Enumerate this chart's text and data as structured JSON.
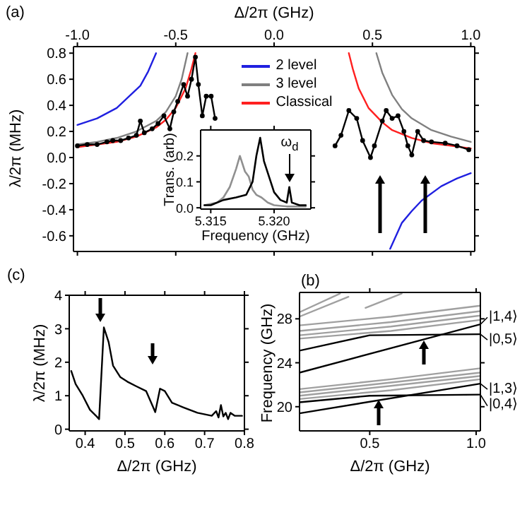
{
  "chart_data": [
    {
      "type": "line",
      "title": "(a)",
      "xlabel": "Δ/2π (GHz)",
      "ylabel": "λ/2π (MHz)",
      "xlim": [
        -1.02,
        1.02
      ],
      "xticks": [
        {
          "value": -1,
          "label": "-1.0"
        },
        {
          "value": -0.5,
          "label": "-0.5"
        },
        {
          "value": 0,
          "label": "0.0"
        },
        {
          "value": 0.5,
          "label": "0.5"
        },
        {
          "value": 1,
          "label": "1.0"
        }
      ],
      "ylim": [
        -0.72,
        0.85
      ],
      "yticks": [
        {
          "value": -0.6,
          "label": "-0.6"
        },
        {
          "value": -0.4,
          "label": "-0.4"
        },
        {
          "value": -0.2,
          "label": "-0.2"
        },
        {
          "value": 0,
          "label": "0.0"
        },
        {
          "value": 0.2,
          "label": "0.2"
        },
        {
          "value": 0.4,
          "label": "0.4"
        },
        {
          "value": 0.6,
          "label": "0.6"
        },
        {
          "value": 0.8,
          "label": "0.8"
        }
      ],
      "legend": "top",
      "series": [
        {
          "name": "2 level",
          "color": "#2020e0",
          "x": [
            -1.0,
            -0.9,
            -0.8,
            -0.68,
            -0.64,
            -0.6,
            0,
            0.59,
            0.65,
            0.7,
            0.75,
            0.85,
            0.93,
            1.0
          ],
          "values": [
            0.25,
            0.3,
            0.38,
            0.55,
            0.66,
            0.8,
            null,
            -0.7,
            -0.5,
            -0.41,
            -0.33,
            -0.22,
            -0.16,
            -0.12
          ]
        },
        {
          "name": "3 level",
          "color": "#808080",
          "x": [
            -1.0,
            -0.9,
            -0.8,
            -0.7,
            -0.6,
            -0.55,
            -0.5,
            -0.47,
            -0.44,
            0,
            0.52,
            0.55,
            0.6,
            0.65,
            0.7,
            0.8,
            0.9,
            1.0
          ],
          "values": [
            0.1,
            0.12,
            0.15,
            0.2,
            0.28,
            0.35,
            0.47,
            0.6,
            0.8,
            null,
            0.8,
            0.65,
            0.48,
            0.37,
            0.3,
            0.21,
            0.16,
            0.12
          ]
        },
        {
          "name": "Classical",
          "color": "#ff2020",
          "x": [
            -1.0,
            -0.9,
            -0.8,
            -0.7,
            -0.6,
            -0.55,
            -0.5,
            -0.45,
            -0.42,
            -0.4,
            0,
            0.38,
            0.4,
            0.43,
            0.48,
            0.55,
            0.6,
            0.7,
            0.8,
            0.9,
            1.0
          ],
          "values": [
            0.08,
            0.1,
            0.12,
            0.16,
            0.23,
            0.29,
            0.38,
            0.53,
            0.68,
            0.8,
            null,
            0.8,
            0.68,
            0.53,
            0.38,
            0.27,
            0.21,
            0.15,
            0.11,
            0.09,
            0.07
          ]
        },
        {
          "color": "#000000",
          "marker": "circle",
          "x": [
            -1.0,
            -0.95,
            -0.9,
            -0.85,
            -0.82,
            -0.78,
            -0.74,
            -0.7,
            -0.68,
            -0.66,
            -0.62,
            -0.59,
            -0.56,
            -0.53,
            -0.51,
            -0.49,
            -0.46,
            -0.44,
            -0.42,
            -0.4,
            -0.385,
            -0.365,
            -0.345,
            -0.32,
            -0.3,
            0,
            0.31,
            0.34,
            0.38,
            0.42,
            0.45,
            0.49,
            0.51,
            0.55,
            0.57,
            0.6,
            0.63,
            0.66,
            0.68,
            0.7,
            0.73,
            0.76,
            0.8,
            0.87,
            0.93,
            0.99
          ],
          "values": [
            0.09,
            0.1,
            0.1,
            0.12,
            0.13,
            0.13,
            0.15,
            0.17,
            0.28,
            0.19,
            0.22,
            0.26,
            0.32,
            0.22,
            0.35,
            0.43,
            0.56,
            0.47,
            0.6,
            0.77,
            0.56,
            0.32,
            0.47,
            0.47,
            0.3,
            null,
            0.09,
            0.17,
            0.36,
            0.3,
            0.13,
            0.0,
            0.09,
            0.28,
            0.36,
            0.3,
            0.32,
            0.2,
            0.09,
            0.02,
            0.2,
            0.13,
            0.12,
            0.11,
            0.09,
            0.06
          ]
        }
      ]
    },
    {
      "type": "line",
      "xlabel": "Frequency (GHz)",
      "ylabel": "Trans. (arb)",
      "xlim": [
        5.3142,
        5.3229
      ],
      "xticks": [
        5.315,
        {
          "value": 5.32,
          "label": "5.320"
        }
      ],
      "ylim": [
        -0.005,
        0.3
      ],
      "yticks": [
        {
          "value": 0,
          "label": "0.0"
        },
        {
          "value": 0.1,
          "label": "0.1"
        },
        {
          "value": 0.2,
          "label": "0.2"
        }
      ],
      "annotations": [
        "ω$_{d}$"
      ],
      "series": [
        {
          "color": "#909090",
          "x": [
            5.3145,
            5.3155,
            5.316,
            5.3165,
            5.317,
            5.3173,
            5.3177,
            5.318,
            5.3183,
            5.3186,
            5.319,
            5.3195,
            5.32,
            5.321,
            5.3225
          ],
          "values": [
            0.01,
            0.02,
            0.04,
            0.08,
            0.15,
            0.2,
            0.14,
            0.12,
            0.07,
            0.05,
            0.04,
            0.02,
            0.01,
            0.005,
            0.005
          ]
        },
        {
          "color": "#000000",
          "x": [
            5.3145,
            5.315,
            5.316,
            5.317,
            5.3178,
            5.3183,
            5.3186,
            5.3189,
            5.3192,
            5.3196,
            5.32,
            5.3205,
            5.321,
            5.3212,
            5.3214,
            5.322,
            5.3225
          ],
          "values": [
            0.01,
            0.01,
            0.03,
            0.04,
            0.05,
            0.1,
            0.2,
            0.27,
            0.18,
            0.12,
            0.06,
            0.03,
            0.02,
            0.08,
            0.02,
            0.01,
            0.01
          ]
        }
      ]
    },
    {
      "type": "line",
      "title": "(c)",
      "xlabel": "Δ/2π (GHz)",
      "ylabel": "λ/2π (MHz)",
      "xlim": [
        0.36,
        0.8
      ],
      "xticks": [
        0.4,
        0.5,
        0.6,
        0.7,
        0.8
      ],
      "ylim": [
        -0.05,
        4
      ],
      "yticks": [
        0,
        1,
        2,
        3,
        4
      ],
      "series": [
        {
          "color": "#000000",
          "x": [
            0.365,
            0.376,
            0.394,
            0.412,
            0.429,
            0.435,
            0.447,
            0.459,
            0.47,
            0.488,
            0.506,
            0.529,
            0.553,
            0.571,
            0.576,
            0.588,
            0.6,
            0.618,
            0.647,
            0.682,
            0.718,
            0.729,
            0.735,
            0.741,
            0.747,
            0.753,
            0.759,
            0.765,
            0.776,
            0.794
          ],
          "values": [
            1.74,
            1.35,
            1.0,
            0.58,
            0.38,
            0.3,
            3.04,
            2.6,
            1.9,
            1.56,
            1.42,
            1.28,
            1.14,
            0.65,
            0.51,
            1.21,
            1.14,
            0.79,
            0.65,
            0.49,
            0.4,
            0.54,
            0.35,
            0.72,
            0.38,
            0.49,
            0.3,
            0.49,
            0.4,
            0.4
          ]
        }
      ]
    },
    {
      "type": "line",
      "title": "(b)",
      "xlabel": "Δ/2π (GHz)",
      "ylabel": "Frequency (GHz)",
      "xlim": [
        0.17,
        1.02
      ],
      "xticks": [
        0.5,
        {
          "value": 1,
          "label": "1.0"
        }
      ],
      "ylim": [
        17.8,
        30.4
      ],
      "yticks": [
        20,
        24,
        28
      ],
      "annotations": [
        "|1,4⟩",
        "|0,5⟩",
        "|1,3⟩",
        "|0,4⟩"
      ],
      "series": [
        {
          "color": "#a0a0a0",
          "x": [
            0.17,
            0.6,
            1.02
          ],
          "values": [
            20.7,
            21.5,
            22.5
          ]
        },
        {
          "color": "#a0a0a0",
          "x": [
            0.17,
            0.6,
            1.02
          ],
          "values": [
            21.0,
            21.9,
            22.8
          ]
        },
        {
          "color": "#a0a0a0",
          "x": [
            0.17,
            0.6,
            1.02
          ],
          "values": [
            21.3,
            22.2,
            23.1
          ]
        },
        {
          "color": "#a0a0a0",
          "x": [
            0.17,
            0.6,
            1.02
          ],
          "values": [
            21.6,
            22.5,
            23.5
          ]
        },
        {
          "color": "#a0a0a0",
          "x": [
            0.17,
            0.6,
            1.02
          ],
          "values": [
            26.2,
            26.9,
            27.9
          ]
        },
        {
          "color": "#a0a0a0",
          "x": [
            0.17,
            0.6,
            1.02
          ],
          "values": [
            26.5,
            27.3,
            28.3
          ]
        },
        {
          "color": "#a0a0a0",
          "x": [
            0.17,
            0.6,
            1.02
          ],
          "values": [
            26.9,
            27.7,
            28.7
          ]
        },
        {
          "color": "#a0a0a0",
          "x": [
            0.17,
            0.6,
            1.02
          ],
          "values": [
            27.4,
            28.2,
            29.2
          ]
        },
        {
          "color": "#a0a0a0",
          "x": [
            0.17,
            0.4
          ],
          "values": [
            28.2,
            30.0
          ]
        },
        {
          "color": "#a0a0a0",
          "x": [
            0.17,
            0.36
          ],
          "values": [
            28.6,
            30.3
          ]
        },
        {
          "color": "#a0a0a0",
          "x": [
            0.48,
            0.65
          ],
          "values": [
            29.0,
            30.3
          ]
        },
        {
          "color": "#000000",
          "x": [
            0.17,
            1.02
          ],
          "values": [
            19.4,
            22.1
          ]
        },
        {
          "color": "#000000",
          "x": [
            0.17,
            0.5,
            1.02
          ],
          "values": [
            20.4,
            21.0,
            21.1
          ]
        },
        {
          "color": "#000000",
          "x": [
            0.17,
            0.5,
            1.02
          ],
          "values": [
            25.1,
            26.5,
            26.6
          ]
        },
        {
          "color": "#000000",
          "x": [
            0.17,
            1.02
          ],
          "values": [
            23.1,
            27.5
          ]
        }
      ]
    }
  ]
}
